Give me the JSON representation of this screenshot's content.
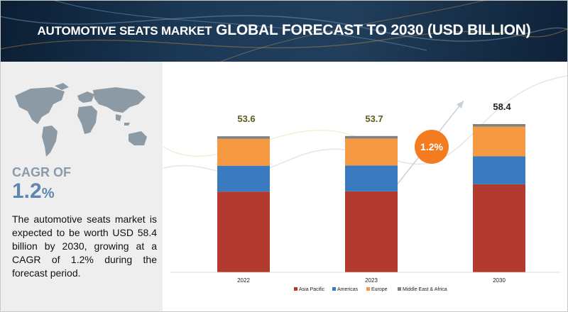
{
  "header": {
    "title_lead": "AUTOMOTIVE SEATS MARKET",
    "title_main": " GLOBAL FORECAST TO 2030 (USD BILLION)"
  },
  "sidebar": {
    "cagr_label": "CAGR OF",
    "cagr_number": "1.2",
    "cagr_unit": "%",
    "description": "The automotive seats market is expected to be worth USD 58.4 billion by 2030, growing at a CAGR of 1.2% during the forecast period."
  },
  "growth_badge": "1.2%",
  "chart_data": {
    "type": "bar",
    "stacked": true,
    "categories": [
      "2022",
      "2023",
      "2030"
    ],
    "totals": [
      53.6,
      53.7,
      58.4
    ],
    "total_labels": [
      "53.6",
      "53.7",
      "58.4"
    ],
    "series": [
      {
        "name": "Asia Pacific",
        "color": "#b33a2f",
        "values": [
          31.8,
          31.9,
          34.7
        ]
      },
      {
        "name": "Americas",
        "color": "#3a7abf",
        "values": [
          10.2,
          10.2,
          11.0
        ]
      },
      {
        "name": "Europe",
        "color": "#f59a42",
        "values": [
          10.6,
          10.6,
          11.7
        ]
      },
      {
        "name": "Middle East & Africa",
        "color": "#808080",
        "values": [
          1.0,
          1.0,
          1.0
        ]
      }
    ],
    "legend_position": "bottom"
  }
}
